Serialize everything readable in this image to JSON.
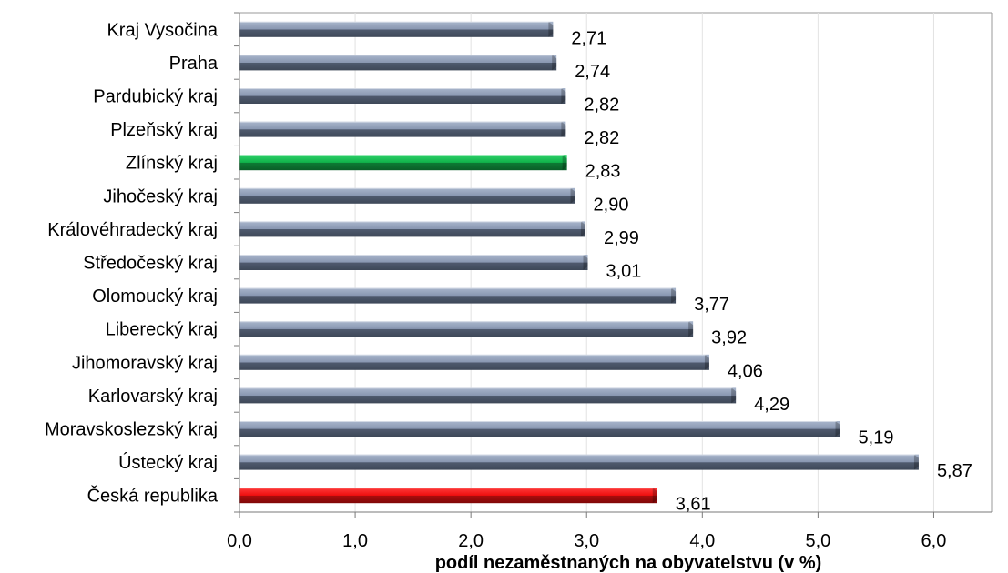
{
  "chart_data": {
    "type": "bar",
    "orientation": "horizontal",
    "categories": [
      "Kraj Vysočina",
      "Praha",
      "Pardubický kraj",
      "Plzeňský kraj",
      "Zlínský kraj",
      "Jihočeský kraj",
      "Královéhradecký kraj",
      "Středočeský kraj",
      "Olomoucký kraj",
      "Liberecký kraj",
      "Jihomoravský kraj",
      "Karlovarský kraj",
      "Moravskoslezský kraj",
      "Ústecký kraj",
      "Česká republika"
    ],
    "values": [
      2.71,
      2.74,
      2.82,
      2.82,
      2.83,
      2.9,
      2.99,
      3.01,
      3.77,
      3.92,
      4.06,
      4.29,
      5.19,
      5.87,
      3.61
    ],
    "value_labels": [
      "2,71",
      "2,74",
      "2,82",
      "2,82",
      "2,83",
      "2,90",
      "2,99",
      "3,01",
      "3,77",
      "3,92",
      "4,06",
      "4,29",
      "5,19",
      "5,87",
      "3,61"
    ],
    "bar_colors": {
      "default": "#7f8ea6",
      "Zlínský kraj": "#1fa64a",
      "Česká republika": "#e01010"
    },
    "xlim": [
      0,
      6.5
    ],
    "xticks": [
      0,
      1,
      2,
      3,
      4,
      5,
      6
    ],
    "xtick_labels": [
      "0,0",
      "1,0",
      "2,0",
      "3,0",
      "4,0",
      "5,0",
      "6,0"
    ],
    "xlabel": "podíl nezaměstnaných na obyvatelstvu (v %)",
    "grid": "vertical"
  }
}
